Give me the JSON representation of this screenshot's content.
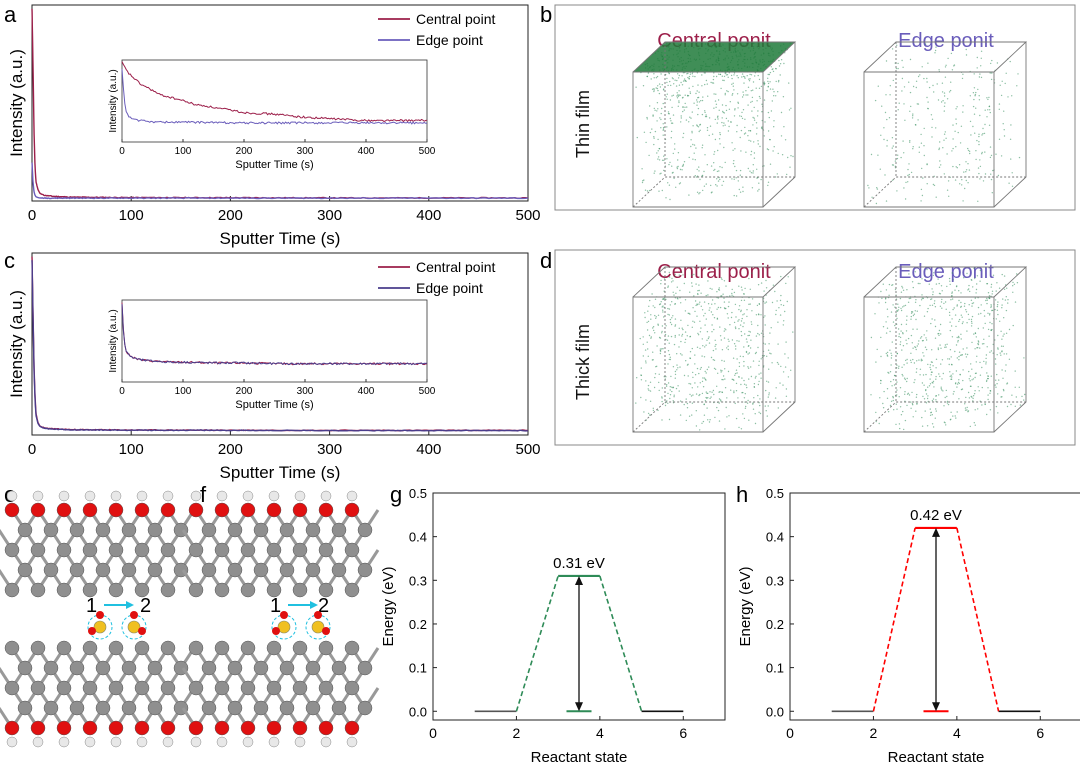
{
  "panel_letters": [
    "a",
    "b",
    "c",
    "d",
    "e",
    "f",
    "g",
    "h"
  ],
  "colors": {
    "central": "#9c1f4a",
    "edge": "#6a5dbb",
    "green_barrier": "#2e8b57",
    "red_barrier": "#ff0000",
    "oxygen": "#e01010",
    "carbon": "#8f8f8f",
    "hydrogen": "#e8e8e8",
    "sulfur": "#f0c020",
    "arrow": "#20c0e0"
  },
  "panel_b": {
    "row_label": "Thin film",
    "titles": [
      "Central ponit",
      "Edge ponit"
    ]
  },
  "panel_d": {
    "row_label": "Thick film",
    "titles": [
      "Central ponit",
      "Edge ponit"
    ]
  },
  "panel_e": {
    "site_labels": [
      "1",
      "2"
    ]
  },
  "panel_f": {
    "site_labels": [
      "1",
      "2"
    ]
  },
  "chart_data": [
    {
      "id": "a",
      "type": "line",
      "xlabel": "Sputter Time (s)",
      "ylabel": "Intensity (a.u.)",
      "xlim": [
        0,
        500
      ],
      "xticks": [
        0,
        100,
        200,
        300,
        400,
        500
      ],
      "legend": "top-right",
      "series": [
        {
          "name": "Central point",
          "color": "#9c1f4a",
          "x": [
            0,
            1,
            2,
            3,
            4,
            6,
            8,
            12,
            20,
            40,
            100,
            200,
            300,
            400,
            500
          ],
          "y": [
            1.0,
            0.72,
            0.38,
            0.18,
            0.1,
            0.06,
            0.04,
            0.03,
            0.025,
            0.02,
            0.018,
            0.017,
            0.016,
            0.016,
            0.016
          ]
        },
        {
          "name": "Edge point",
          "color": "#6a5dbb",
          "x": [
            0,
            1,
            2,
            3,
            4,
            6,
            8,
            12,
            20,
            40,
            100,
            200,
            300,
            400,
            500
          ],
          "y": [
            0.2,
            0.1,
            0.05,
            0.03,
            0.022,
            0.018,
            0.016,
            0.015,
            0.015,
            0.015,
            0.015,
            0.015,
            0.015,
            0.015,
            0.015
          ]
        }
      ],
      "inset": {
        "xlabel": "Sputter Time (s)",
        "ylabel": "Intensity (a.u.)",
        "xlim": [
          0,
          500
        ],
        "xticks": [
          0,
          100,
          200,
          300,
          400,
          500
        ],
        "series": [
          {
            "name": "Central point",
            "color": "#9c1f4a",
            "x": [
              0,
              5,
              10,
              20,
              30,
              40,
              50,
              60,
              80,
              100,
              120,
              140,
              160,
              180,
              200,
              250,
              300,
              350,
              400,
              450,
              500
            ],
            "y": [
              1.0,
              0.93,
              0.87,
              0.8,
              0.73,
              0.69,
              0.65,
              0.6,
              0.56,
              0.52,
              0.47,
              0.45,
              0.42,
              0.4,
              0.37,
              0.35,
              0.31,
              0.29,
              0.27,
              0.27,
              0.27
            ]
          },
          {
            "name": "Edge point",
            "color": "#6a5dbb",
            "x": [
              0,
              3,
              6,
              10,
              15,
              20,
              30,
              40,
              60,
              100,
              200,
              300,
              400,
              500
            ],
            "y": [
              0.92,
              0.6,
              0.4,
              0.33,
              0.3,
              0.28,
              0.27,
              0.26,
              0.25,
              0.25,
              0.24,
              0.24,
              0.24,
              0.24
            ]
          }
        ]
      }
    },
    {
      "id": "c",
      "type": "line",
      "xlabel": "Sputter Time (s)",
      "ylabel": "Intensity (a.u.)",
      "xlim": [
        0,
        500
      ],
      "xticks": [
        0,
        100,
        200,
        300,
        400,
        500
      ],
      "legend": "top-right",
      "series": [
        {
          "name": "Central point",
          "color": "#9c1f4a",
          "x": [
            0,
            1,
            2,
            3,
            4,
            6,
            8,
            12,
            20,
            40,
            100,
            200,
            300,
            400,
            500
          ],
          "y": [
            1.0,
            0.7,
            0.4,
            0.22,
            0.12,
            0.07,
            0.05,
            0.04,
            0.035,
            0.03,
            0.028,
            0.027,
            0.026,
            0.026,
            0.026
          ]
        },
        {
          "name": "Edge point",
          "color": "#4a3d8c",
          "x": [
            0,
            1,
            2,
            3,
            4,
            6,
            8,
            12,
            20,
            40,
            100,
            200,
            300,
            400,
            500
          ],
          "y": [
            0.98,
            0.68,
            0.38,
            0.2,
            0.11,
            0.065,
            0.048,
            0.038,
            0.033,
            0.029,
            0.027,
            0.026,
            0.025,
            0.025,
            0.025
          ]
        }
      ],
      "inset": {
        "xlabel": "Sputter Time (s)",
        "ylabel": "Intensity (a.u.)",
        "xlim": [
          0,
          500
        ],
        "xticks": [
          0,
          100,
          200,
          300,
          400,
          500
        ],
        "series": [
          {
            "name": "Central point",
            "color": "#9c1f4a",
            "x": [
              0,
              3,
              6,
              10,
              15,
              20,
              30,
              40,
              60,
              80,
              100,
              150,
              200,
              250,
              300,
              350,
              400,
              450,
              500
            ],
            "y": [
              1.0,
              0.55,
              0.4,
              0.35,
              0.32,
              0.3,
              0.28,
              0.27,
              0.26,
              0.25,
              0.25,
              0.24,
              0.24,
              0.23,
              0.23,
              0.23,
              0.23,
              0.23,
              0.23
            ]
          },
          {
            "name": "Edge point",
            "color": "#4a3d8c",
            "x": [
              0,
              3,
              6,
              10,
              15,
              20,
              30,
              40,
              60,
              80,
              100,
              150,
              200,
              250,
              300,
              350,
              400,
              450,
              500
            ],
            "y": [
              0.98,
              0.54,
              0.4,
              0.35,
              0.32,
              0.3,
              0.28,
              0.27,
              0.26,
              0.25,
              0.25,
              0.24,
              0.24,
              0.23,
              0.23,
              0.23,
              0.23,
              0.23,
              0.23
            ]
          }
        ]
      }
    },
    {
      "id": "g",
      "type": "line",
      "xlabel": "Reactant state",
      "ylabel": "Energy (eV)",
      "xlim": [
        0,
        7
      ],
      "ylim": [
        -0.02,
        0.5
      ],
      "xticks": [
        0,
        2,
        4,
        6
      ],
      "yticks": [
        0.0,
        0.1,
        0.2,
        0.3,
        0.4,
        0.5
      ],
      "color": "#2e8b57",
      "levels": [
        {
          "x": [
            1,
            2
          ],
          "y": 0.0
        },
        {
          "x": [
            3,
            4
          ],
          "y": 0.31
        },
        {
          "x": [
            5,
            6
          ],
          "y": 0.0
        }
      ],
      "mid_level": {
        "x": [
          3.2,
          3.8
        ],
        "y": 0.0
      },
      "barrier_arrow_x": 3.5,
      "annotation": "0.31 eV",
      "barrier": 0.31
    },
    {
      "id": "h",
      "type": "line",
      "xlabel": "Reactant state",
      "ylabel": "Energy (eV)",
      "xlim": [
        0,
        7
      ],
      "ylim": [
        -0.02,
        0.5
      ],
      "xticks": [
        0,
        2,
        4,
        6
      ],
      "yticks": [
        0.0,
        0.1,
        0.2,
        0.3,
        0.4,
        0.5
      ],
      "color": "#ff0000",
      "levels": [
        {
          "x": [
            1,
            2
          ],
          "y": 0.0
        },
        {
          "x": [
            3,
            4
          ],
          "y": 0.42
        },
        {
          "x": [
            5,
            6
          ],
          "y": 0.0
        }
      ],
      "mid_level": {
        "x": [
          3.2,
          3.8
        ],
        "y": 0.0
      },
      "barrier_arrow_x": 3.5,
      "annotation": "0.42 eV",
      "barrier": 0.42
    }
  ]
}
